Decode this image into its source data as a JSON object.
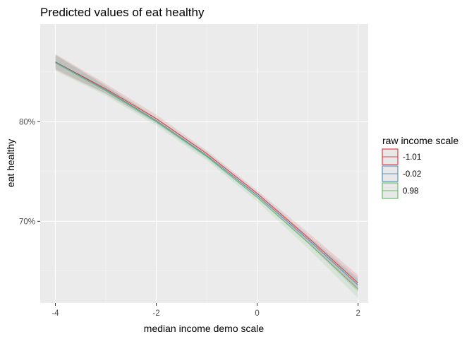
{
  "chart_data": {
    "type": "line",
    "title": "Predicted values of eat healthy",
    "xlabel": "median income demo scale",
    "ylabel": "eat healthy",
    "xlim": [
      -4.3,
      2.2
    ],
    "ylim": [
      0.618,
      0.898
    ],
    "x_ticks": [
      -4,
      -2,
      0,
      2
    ],
    "x_tick_labels": [
      "-4",
      "-2",
      "0",
      "2"
    ],
    "y_ticks": [
      0.7,
      0.8
    ],
    "y_tick_labels": [
      "70%",
      "80%"
    ],
    "grid": true,
    "legend": {
      "title": "raw income scale",
      "placement": "right"
    },
    "x": [
      -4,
      -3,
      -2,
      -1,
      0,
      1,
      2
    ],
    "series": [
      {
        "name": "-1.01",
        "color": "#e41a1c",
        "values": [
          0.86,
          0.833,
          0.803,
          0.768,
          0.728,
          0.684,
          0.638
        ],
        "lower": [
          0.852,
          0.828,
          0.799,
          0.765,
          0.725,
          0.679,
          0.63
        ],
        "upper": [
          0.868,
          0.838,
          0.807,
          0.771,
          0.731,
          0.689,
          0.646
        ]
      },
      {
        "name": "-0.02",
        "color": "#377eb8",
        "values": [
          0.86,
          0.832,
          0.801,
          0.766,
          0.726,
          0.682,
          0.636
        ],
        "lower": [
          0.853,
          0.828,
          0.798,
          0.763,
          0.723,
          0.678,
          0.629
        ],
        "upper": [
          0.867,
          0.836,
          0.804,
          0.769,
          0.729,
          0.686,
          0.643
        ]
      },
      {
        "name": "0.98",
        "color": "#4daf4a",
        "values": [
          0.859,
          0.831,
          0.8,
          0.765,
          0.724,
          0.679,
          0.632
        ],
        "lower": [
          0.851,
          0.826,
          0.796,
          0.761,
          0.72,
          0.673,
          0.623
        ],
        "upper": [
          0.867,
          0.836,
          0.804,
          0.769,
          0.728,
          0.685,
          0.641
        ]
      }
    ]
  }
}
